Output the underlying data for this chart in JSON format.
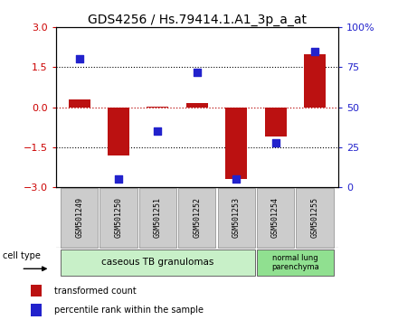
{
  "title": "GDS4256 / Hs.79414.1.A1_3p_a_at",
  "samples": [
    "GSM501249",
    "GSM501250",
    "GSM501251",
    "GSM501252",
    "GSM501253",
    "GSM501254",
    "GSM501255"
  ],
  "red_values": [
    0.3,
    -1.8,
    0.02,
    0.15,
    -2.7,
    -1.1,
    2.0
  ],
  "blue_values_pct": [
    80,
    5,
    35,
    72,
    5,
    28,
    85
  ],
  "ylim": [
    -3,
    3
  ],
  "y2lim": [
    0,
    100
  ],
  "y_ticks": [
    -3,
    -1.5,
    0,
    1.5,
    3
  ],
  "y2_ticks": [
    0,
    25,
    50,
    75,
    100
  ],
  "y2_tick_labels": [
    "0",
    "25",
    "50",
    "75",
    "100%"
  ],
  "group1_indices": [
    0,
    1,
    2,
    3,
    4
  ],
  "group2_indices": [
    5,
    6
  ],
  "group1_label": "caseous TB granulomas",
  "group2_label": "normal lung\nparenchyma",
  "group1_color": "#c8f0c8",
  "group2_color": "#90e090",
  "cell_type_label": "cell type",
  "legend_red": "transformed count",
  "legend_blue": "percentile rank within the sample",
  "bar_color": "#bb1111",
  "dot_color": "#2222cc",
  "bar_width": 0.55,
  "dot_size": 35,
  "tick_label_color_left": "#cc0000",
  "tick_label_color_right": "#2222cc",
  "sample_box_color": "#cccccc",
  "title_fontsize": 10,
  "axis_fontsize": 8,
  "label_fontsize": 7
}
